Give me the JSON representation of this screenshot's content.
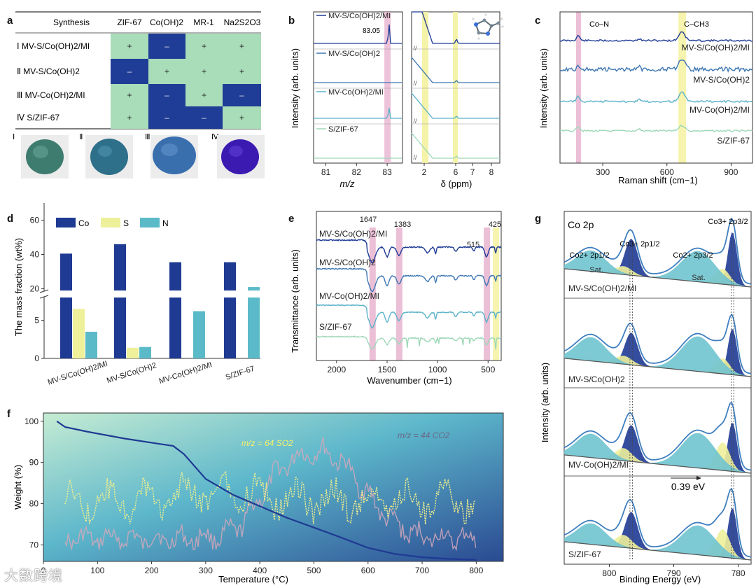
{
  "panel_labels": [
    "a",
    "b",
    "c",
    "d",
    "e",
    "f",
    "g"
  ],
  "colors": {
    "co": "#1f3a93",
    "s": "#eef09a",
    "n": "#5bbac8",
    "pink": "#e8b4cf",
    "yellow": "#f4f2a0",
    "green": "#a9dcb8",
    "dark": "#1f3c96",
    "mid": "#3d77b3",
    "light": "#5bb2c9",
    "pale": "#9fd8b8"
  },
  "chart_data": [
    {
      "type": "table",
      "panel": "a",
      "columns": [
        "Synthesis",
        "ZIF-67",
        "Co(OH)2",
        "MR-1",
        "Na2S2O3"
      ],
      "rows": [
        {
          "label": "Ⅰ MV-S/Co(OH)2/MI",
          "cells": [
            "+",
            "–",
            "+",
            "+"
          ]
        },
        {
          "label": "Ⅱ MV-S/Co(OH)2",
          "cells": [
            "–",
            "+",
            "+",
            "+"
          ]
        },
        {
          "label": "Ⅲ MV-Co(OH)2/MI",
          "cells": [
            "+",
            "–",
            "+",
            "–"
          ]
        },
        {
          "label": "Ⅳ S/ZIF-67",
          "cells": [
            "+",
            "–",
            "–",
            "+"
          ]
        }
      ],
      "photo_labels": [
        "Ⅰ",
        "Ⅱ",
        "Ⅲ",
        "Ⅳ"
      ]
    },
    {
      "type": "line",
      "panel": "b",
      "ylabel": "Intensity (arb. units)",
      "left_xlabel": "m/z",
      "left_ticks": [
        81,
        82,
        83
      ],
      "left_xlim": [
        80.6,
        83.5
      ],
      "right_xlabel": "δ (ppm)",
      "right_ticks": [
        2,
        6,
        7,
        8
      ],
      "peak_label": "83.05",
      "series": [
        "MV-S/Co(OH)2/MI",
        "MV-S/Co(OH)2",
        "MV-Co(OH)2/MI",
        "S/ZIF-67"
      ],
      "ms_peak": 83.05
    },
    {
      "type": "line",
      "panel": "c",
      "xlabel": "Raman shift (cm−1)",
      "ylabel": "Intensity (arb. units)",
      "xlim": [
        100,
        1000
      ],
      "xticks": [
        300,
        600,
        900
      ],
      "bands": [
        {
          "label": "Co–N",
          "x": 185
        },
        {
          "label": "C–CH3",
          "x": 670
        }
      ],
      "series": [
        "MV-S/Co(OH)2/MI",
        "MV-S/Co(OH)2",
        "MV-Co(OH)2/MI",
        "S/ZIF-67"
      ]
    },
    {
      "type": "bar",
      "panel": "d",
      "ylabel": "The mass fraction (wt%)",
      "categories": [
        "MV-S/Co(OH)2/MI",
        "MV-S/Co(OH)2",
        "MV-Co(OH)2/MI",
        "S/ZIF-67"
      ],
      "series": [
        {
          "name": "Co",
          "values": [
            40.5,
            46,
            35.5,
            35.5
          ]
        },
        {
          "name": "S",
          "values": [
            6.5,
            1.4,
            0,
            0
          ]
        },
        {
          "name": "N",
          "values": [
            3.5,
            1.5,
            6.2,
            21
          ]
        }
      ],
      "yticks_low": [
        0,
        5
      ],
      "yticks_high": [
        20,
        40,
        60
      ],
      "axis_break": [
        8,
        19
      ]
    },
    {
      "type": "line",
      "panel": "e",
      "xlabel": "Wavenumber (cm−1)",
      "ylabel": "Transmittance (arb. units)",
      "xlim": [
        2200,
        370
      ],
      "xticks": [
        2000,
        1500,
        1000,
        500
      ],
      "band_labels": [
        "1647",
        "1383",
        "515",
        "425"
      ],
      "bands": [
        1647,
        1383,
        515,
        425
      ],
      "series": [
        "MV-S/Co(OH)2/MI",
        "MV-S/Co(OH)2",
        "MV-Co(OH)2/MI",
        "S/ZIF-67"
      ]
    },
    {
      "type": "line",
      "panel": "f",
      "xlabel": "Temperature (°C)",
      "ylabel": "Weight (%)",
      "xlim": [
        0,
        850
      ],
      "ylim": [
        66,
        102
      ],
      "xticks": [
        0,
        100,
        200,
        300,
        400,
        500,
        600,
        700,
        800
      ],
      "yticks": [
        70,
        80,
        90,
        100
      ],
      "tga": {
        "x": [
          25,
          40,
          80,
          150,
          200,
          240,
          260,
          300,
          350,
          400,
          450,
          500,
          550,
          600,
          650,
          700,
          750,
          800
        ],
        "y": [
          100,
          98.6,
          97.5,
          95.8,
          94.8,
          94,
          92,
          86,
          82.2,
          79.4,
          76.6,
          74.2,
          71.8,
          69.3,
          67.8,
          67,
          66.6,
          66.4
        ]
      },
      "ms_labels": [
        "m/z = 64 SO2",
        "m/z = 44 CO2"
      ]
    },
    {
      "type": "line",
      "panel": "g",
      "title": "Co 2p",
      "xlabel": "Binding Energy (eV)",
      "ylabel": "Intensity (arb. units)",
      "xlim": [
        807,
        778
      ],
      "xticks": [
        800,
        790,
        780
      ],
      "peak_labels": [
        "Co2+ 2p1/2",
        "Co3+ 2p1/2",
        "Co2+ 2p3/2",
        "Co3+ 2p3/2",
        "Sat.",
        "Sat."
      ],
      "shift_label": "0.39 eV",
      "series": [
        "MV-S/Co(OH)2/MI",
        "MV-S/Co(OH)2",
        "MV-Co(OH)2/MI",
        "S/ZIF-67"
      ]
    }
  ],
  "watermark": "大数跨境"
}
